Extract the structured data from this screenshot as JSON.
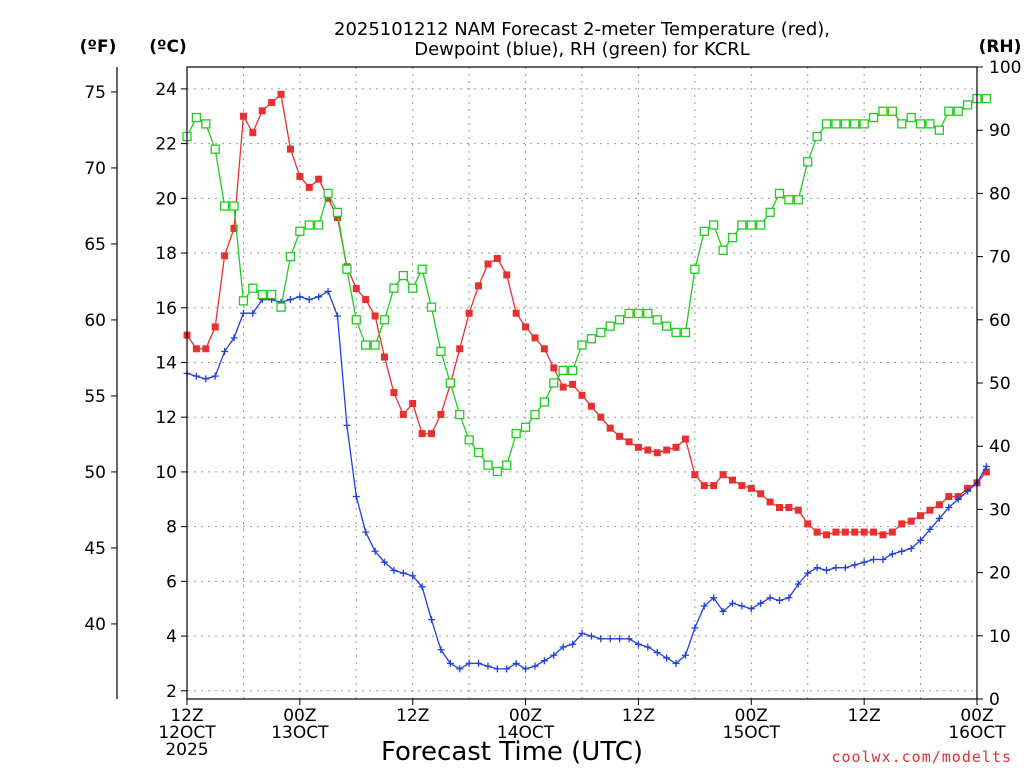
{
  "title_line1": "2025101212 NAM Forecast 2-meter Temperature (red),",
  "title_line2": "Dewpoint (blue), RH (green) for KCRL",
  "credit": "coolwx.com/modelts",
  "colors": {
    "temp": "#e83030",
    "dewpoint": "#2040e0",
    "rh": "#22cc22",
    "grid": "#9a9a9a"
  },
  "chart_data": {
    "type": "line",
    "xlabel": "Forecast Time (UTC)",
    "x_unit": "forecast hour from 2025101212",
    "x_range": [
      0,
      84
    ],
    "x_ticks": [
      {
        "hour": 0,
        "lines": [
          "12Z",
          "12OCT",
          "2025"
        ]
      },
      {
        "hour": 12,
        "lines": [
          "00Z",
          "13OCT"
        ]
      },
      {
        "hour": 24,
        "lines": [
          "12Z"
        ]
      },
      {
        "hour": 36,
        "lines": [
          "00Z",
          "14OCT"
        ]
      },
      {
        "hour": 48,
        "lines": [
          "12Z"
        ]
      },
      {
        "hour": 60,
        "lines": [
          "00Z",
          "15OCT"
        ]
      },
      {
        "hour": 72,
        "lines": [
          "12Z"
        ]
      },
      {
        "hour": 84,
        "lines": [
          "00Z",
          "16OCT"
        ]
      }
    ],
    "y_left_c": {
      "label": "(ºC)",
      "range": [
        1.7,
        24.8
      ],
      "ticks": [
        2,
        4,
        6,
        8,
        10,
        12,
        14,
        16,
        18,
        20,
        22,
        24
      ]
    },
    "y_left_f": {
      "label": "(ºF)",
      "ticks": [
        40,
        45,
        50,
        55,
        60,
        65,
        70,
        75
      ]
    },
    "y_right_rh": {
      "label": "(RH)",
      "range": [
        0,
        100
      ],
      "ticks": [
        0,
        10,
        20,
        30,
        40,
        50,
        60,
        70,
        80,
        90,
        100
      ]
    },
    "grid": true,
    "series": [
      {
        "key": "temp",
        "unit": "C",
        "marker": "filled-square",
        "values": [
          15.0,
          14.5,
          14.5,
          15.3,
          17.9,
          18.9,
          23.0,
          22.4,
          23.2,
          23.5,
          23.8,
          21.8,
          20.8,
          20.4,
          20.7,
          20.0,
          19.3,
          17.5,
          16.7,
          16.3,
          15.7,
          14.2,
          12.9,
          12.1,
          12.5,
          11.4,
          11.4,
          12.1,
          13.2,
          14.5,
          15.8,
          16.8,
          17.6,
          17.8,
          17.2,
          15.8,
          15.3,
          14.9,
          14.5,
          13.8,
          13.1,
          13.2,
          12.8,
          12.4,
          12.0,
          11.6,
          11.3,
          11.1,
          10.9,
          10.8,
          10.7,
          10.8,
          10.9,
          11.2,
          9.9,
          9.5,
          9.5,
          9.9,
          9.7,
          9.5,
          9.4,
          9.2,
          8.9,
          8.7,
          8.7,
          8.6,
          8.1,
          7.8,
          7.7,
          7.8,
          7.8,
          7.8,
          7.8,
          7.8,
          7.7,
          7.8,
          8.1,
          8.2,
          8.4,
          8.6,
          8.8,
          9.1,
          9.1,
          9.4,
          9.6,
          10.0
        ]
      },
      {
        "key": "dewpoint",
        "unit": "C",
        "marker": "plus",
        "values": [
          13.6,
          13.5,
          13.4,
          13.5,
          14.4,
          14.9,
          15.8,
          15.8,
          16.3,
          16.3,
          16.2,
          16.3,
          16.4,
          16.3,
          16.4,
          16.6,
          15.7,
          11.7,
          9.1,
          7.8,
          7.1,
          6.7,
          6.4,
          6.3,
          6.2,
          5.8,
          4.6,
          3.5,
          3.0,
          2.8,
          3.0,
          3.0,
          2.9,
          2.8,
          2.8,
          3.0,
          2.8,
          2.9,
          3.1,
          3.3,
          3.6,
          3.7,
          4.1,
          4.0,
          3.9,
          3.9,
          3.9,
          3.9,
          3.7,
          3.6,
          3.4,
          3.2,
          3.0,
          3.3,
          4.3,
          5.1,
          5.4,
          4.9,
          5.2,
          5.1,
          5.0,
          5.2,
          5.4,
          5.3,
          5.4,
          5.9,
          6.3,
          6.5,
          6.4,
          6.5,
          6.5,
          6.6,
          6.7,
          6.8,
          6.8,
          7.0,
          7.1,
          7.2,
          7.5,
          7.9,
          8.3,
          8.7,
          9.0,
          9.3,
          9.6,
          10.2
        ]
      },
      {
        "key": "rh",
        "unit": "%",
        "marker": "open-square",
        "values": [
          89,
          92,
          91,
          87,
          78,
          78,
          63,
          65,
          64,
          64,
          62,
          70,
          74,
          75,
          75,
          80,
          77,
          68,
          60,
          56,
          56,
          60,
          65,
          67,
          65,
          68,
          62,
          55,
          50,
          45,
          41,
          39,
          37,
          36,
          37,
          42,
          43,
          45,
          47,
          50,
          52,
          52,
          56,
          57,
          58,
          59,
          60,
          61,
          61,
          61,
          60,
          59,
          58,
          58,
          68,
          74,
          75,
          71,
          73,
          75,
          75,
          75,
          77,
          80,
          79,
          79,
          85,
          89,
          91,
          91,
          91,
          91,
          91,
          92,
          93,
          93,
          91,
          92,
          91,
          91,
          90,
          93,
          93,
          94,
          95,
          95
        ]
      }
    ]
  }
}
